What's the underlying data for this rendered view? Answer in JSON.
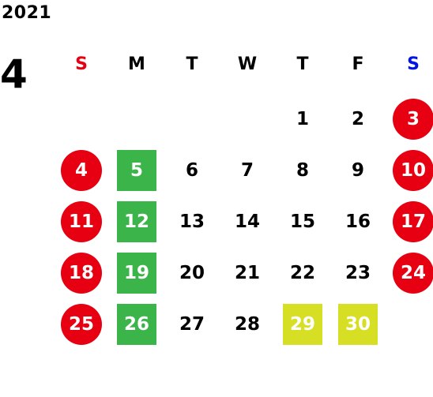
{
  "year": "2021",
  "month": "4",
  "weekdays": [
    {
      "label": "S",
      "type": "sun"
    },
    {
      "label": "M",
      "type": "normal"
    },
    {
      "label": "T",
      "type": "normal"
    },
    {
      "label": "W",
      "type": "normal"
    },
    {
      "label": "T",
      "type": "normal"
    },
    {
      "label": "F",
      "type": "normal"
    },
    {
      "label": "S",
      "type": "sat"
    }
  ],
  "weeks": [
    [
      "",
      "",
      "",
      "",
      "1",
      "2",
      "3"
    ],
    [
      "4",
      "5",
      "6",
      "7",
      "8",
      "9",
      "10"
    ],
    [
      "11",
      "12",
      "13",
      "14",
      "15",
      "16",
      "17"
    ],
    [
      "18",
      "19",
      "20",
      "21",
      "22",
      "23",
      "24"
    ],
    [
      "25",
      "26",
      "27",
      "28",
      "29",
      "30",
      ""
    ]
  ],
  "highlights": {
    "red_circle": [
      "3",
      "4",
      "10",
      "11",
      "17",
      "18",
      "24",
      "25"
    ],
    "green_square": [
      "5",
      "12",
      "19",
      "26"
    ],
    "yellow_square": [
      "29",
      "30"
    ]
  },
  "colors": {
    "sunday_red": "#e60012",
    "saturday_blue": "#0014e6",
    "holiday_red": "#e60012",
    "green": "#3bb54a",
    "yellow": "#d6df23"
  }
}
